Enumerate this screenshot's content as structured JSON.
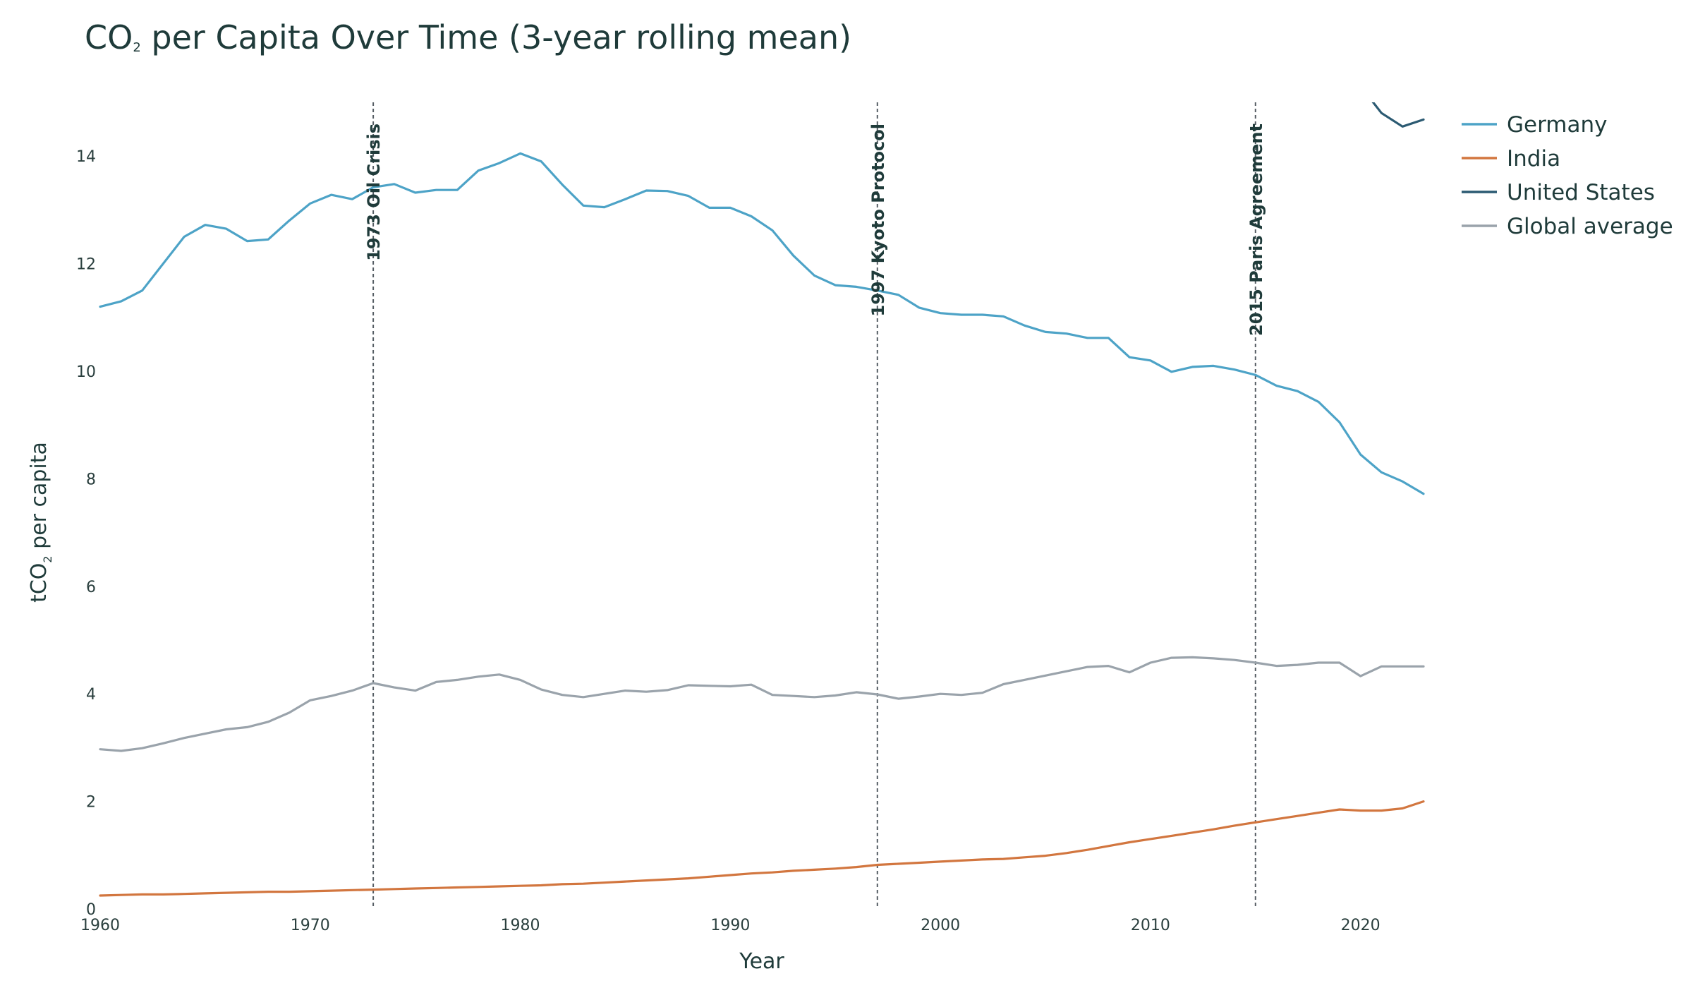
{
  "chart_data": {
    "type": "line",
    "title": {
      "main": "CO",
      "sub": "2",
      "rest": " per Capita Over Time (3-year rolling mean)"
    },
    "xlabel": "Year",
    "ylabel": {
      "main": "tCO",
      "sub": "2",
      "rest": " per capita"
    },
    "xlim": [
      1960,
      2023
    ],
    "ylim": [
      0,
      15
    ],
    "x_ticks": [
      1960,
      1970,
      1980,
      1990,
      2000,
      2010,
      2020
    ],
    "y_ticks": [
      0,
      2,
      4,
      6,
      8,
      10,
      12,
      14
    ],
    "grid": false,
    "legend_position": "top-right",
    "annotations": [
      {
        "x": 1973,
        "label": "1973 Oil Crisis"
      },
      {
        "x": 1997,
        "label": "1997 Kyoto Protocol"
      },
      {
        "x": 2015,
        "label": "2015 Paris Agreement"
      }
    ],
    "series": [
      {
        "name": "Germany",
        "color": "#4da3c7",
        "x": [
          1960,
          1961,
          1962,
          1963,
          1964,
          1965,
          1966,
          1967,
          1968,
          1969,
          1970,
          1971,
          1972,
          1973,
          1974,
          1975,
          1976,
          1977,
          1978,
          1979,
          1980,
          1981,
          1982,
          1983,
          1984,
          1985,
          1986,
          1987,
          1988,
          1989,
          1990,
          1991,
          1992,
          1993,
          1994,
          1995,
          1996,
          1997,
          1998,
          1999,
          2000,
          2001,
          2002,
          2003,
          2004,
          2005,
          2006,
          2007,
          2008,
          2009,
          2010,
          2011,
          2012,
          2013,
          2014,
          2015,
          2016,
          2017,
          2018,
          2019,
          2020,
          2021,
          2022,
          2023
        ],
        "values": [
          11.2,
          11.3,
          11.5,
          12.0,
          12.5,
          12.72,
          12.65,
          12.42,
          12.45,
          12.8,
          13.12,
          13.28,
          13.2,
          13.42,
          13.48,
          13.32,
          13.37,
          13.37,
          13.73,
          13.87,
          14.05,
          13.9,
          13.47,
          13.08,
          13.05,
          13.2,
          13.36,
          13.35,
          13.26,
          13.04,
          13.04,
          12.88,
          12.62,
          12.15,
          11.78,
          11.6,
          11.57,
          11.5,
          11.42,
          11.18,
          11.08,
          11.05,
          11.05,
          11.02,
          10.85,
          10.73,
          10.7,
          10.62,
          10.62,
          10.26,
          10.2,
          9.99,
          10.08,
          10.1,
          10.03,
          9.93,
          9.73,
          9.63,
          9.43,
          9.05,
          8.45,
          8.12,
          7.95,
          7.72
        ]
      },
      {
        "name": "India",
        "color": "#d2763f",
        "x": [
          1960,
          1961,
          1962,
          1963,
          1964,
          1965,
          1966,
          1967,
          1968,
          1969,
          1970,
          1971,
          1972,
          1973,
          1974,
          1975,
          1976,
          1977,
          1978,
          1979,
          1980,
          1981,
          1982,
          1983,
          1984,
          1985,
          1986,
          1987,
          1988,
          1989,
          1990,
          1991,
          1992,
          1993,
          1994,
          1995,
          1996,
          1997,
          1998,
          1999,
          2000,
          2001,
          2002,
          2003,
          2004,
          2005,
          2006,
          2007,
          2008,
          2009,
          2010,
          2011,
          2012,
          2013,
          2014,
          2015,
          2016,
          2017,
          2018,
          2019,
          2020,
          2021,
          2022,
          2023
        ],
        "values": [
          0.25,
          0.26,
          0.27,
          0.27,
          0.28,
          0.29,
          0.3,
          0.31,
          0.32,
          0.32,
          0.33,
          0.34,
          0.35,
          0.36,
          0.37,
          0.38,
          0.39,
          0.4,
          0.41,
          0.42,
          0.43,
          0.44,
          0.46,
          0.47,
          0.49,
          0.51,
          0.53,
          0.55,
          0.57,
          0.6,
          0.63,
          0.66,
          0.68,
          0.71,
          0.73,
          0.75,
          0.78,
          0.82,
          0.84,
          0.86,
          0.88,
          0.9,
          0.92,
          0.93,
          0.96,
          0.99,
          1.04,
          1.1,
          1.17,
          1.24,
          1.3,
          1.36,
          1.42,
          1.48,
          1.55,
          1.61,
          1.67,
          1.73,
          1.79,
          1.85,
          1.83,
          1.83,
          1.87,
          2.0
        ]
      },
      {
        "name": "United States",
        "color": "#2b5a72",
        "x": [
          2020,
          2021,
          2022,
          2023
        ],
        "values": [
          15.3,
          14.8,
          14.55,
          14.68
        ]
      },
      {
        "name": "Global average",
        "color": "#9aa3ab",
        "x": [
          1960,
          1961,
          1962,
          1963,
          1964,
          1965,
          1966,
          1967,
          1968,
          1969,
          1970,
          1971,
          1972,
          1973,
          1974,
          1975,
          1976,
          1977,
          1978,
          1979,
          1980,
          1981,
          1982,
          1983,
          1984,
          1985,
          1986,
          1987,
          1988,
          1989,
          1990,
          1991,
          1992,
          1993,
          1994,
          1995,
          1996,
          1997,
          1998,
          1999,
          2000,
          2001,
          2002,
          2003,
          2004,
          2005,
          2006,
          2007,
          2008,
          2009,
          2010,
          2011,
          2012,
          2013,
          2014,
          2015,
          2016,
          2017,
          2018,
          2019,
          2020,
          2021,
          2022,
          2023
        ],
        "values": [
          2.97,
          2.94,
          2.99,
          3.08,
          3.18,
          3.26,
          3.34,
          3.38,
          3.48,
          3.65,
          3.88,
          3.96,
          4.06,
          4.2,
          4.12,
          4.06,
          4.22,
          4.26,
          4.32,
          4.36,
          4.26,
          4.08,
          3.98,
          3.94,
          4.0,
          4.06,
          4.04,
          4.07,
          4.16,
          4.15,
          4.14,
          4.17,
          3.98,
          3.96,
          3.94,
          3.97,
          4.03,
          3.99,
          3.91,
          3.95,
          4.0,
          3.98,
          4.02,
          4.18,
          4.26,
          4.34,
          4.42,
          4.5,
          4.52,
          4.4,
          4.58,
          4.67,
          4.68,
          4.66,
          4.63,
          4.58,
          4.52,
          4.54,
          4.58,
          4.58,
          4.33,
          4.51,
          4.51,
          4.51
        ]
      }
    ]
  }
}
